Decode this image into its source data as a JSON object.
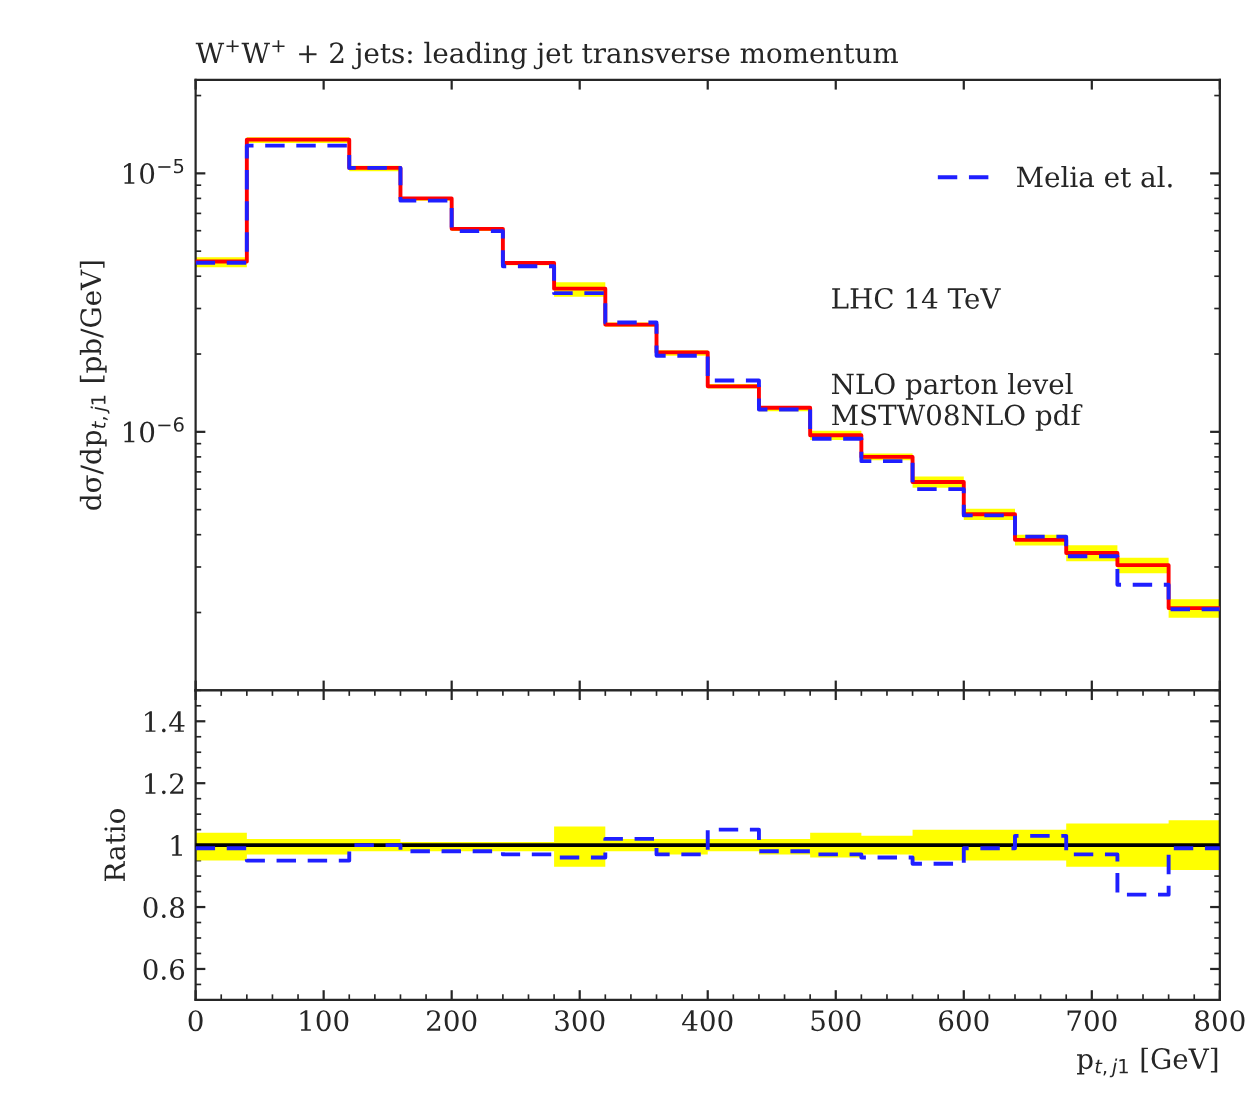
{
  "chart_data": [
    {
      "type": "step",
      "title": "W$^{+}$W$^{+}$ + 2 jets: leading jet transverse momentum",
      "ylabel": "dσ/dp$_{t,j1}$ [pb/GeV]",
      "x": [
        0,
        40,
        120,
        160,
        200,
        240,
        280,
        320,
        360,
        400,
        440,
        480,
        520,
        560,
        600,
        640,
        680,
        720,
        760,
        800
      ],
      "series": [
        {
          "color": "#ff0000",
          "line_style": "solid",
          "values": [
            4.56e-06,
            1.35e-05,
            1.05e-05,
            8e-06,
            6.1e-06,
            4.5e-06,
            3.58e-06,
            2.6e-06,
            2.03e-06,
            1.5e-06,
            1.24e-06,
            9.7e-07,
            8e-07,
            6.4e-07,
            4.8e-07,
            3.82e-07,
            3.4e-07,
            3.05e-07,
            2.08e-07,
            2.08e-07
          ],
          "lower": [
            4.33e-06,
            1.31e-05,
            1.02e-05,
            7.84e-06,
            5.98e-06,
            4.41e-06,
            3.33e-06,
            2.55e-06,
            1.97e-06,
            1.47e-06,
            1.2e-06,
            9.3e-07,
            7.76e-07,
            6.08e-07,
            4.56e-07,
            3.63e-07,
            3.16e-07,
            2.84e-07,
            1.91e-07,
            1.91e-07
          ],
          "upper": [
            4.74e-06,
            1.38e-05,
            1.07e-05,
            8.08e-06,
            6.16e-06,
            4.55e-06,
            3.79e-06,
            2.65e-06,
            2.07e-06,
            1.53e-06,
            1.26e-06,
            1.01e-06,
            8.24e-07,
            6.72e-07,
            5.04e-07,
            4e-07,
            3.64e-07,
            3.26e-07,
            2.25e-07,
            2.25e-07
          ]
        },
        {
          "name": "Melia et al.",
          "color": "#1f1fff",
          "line_style": "dashed",
          "values": [
            4.51e-06,
            1.28e-05,
            1.05e-05,
            7.84e-06,
            5.98e-06,
            4.37e-06,
            3.44e-06,
            2.65e-06,
            1.97e-06,
            1.58e-06,
            1.22e-06,
            9.4e-07,
            7.7e-07,
            6e-07,
            4.75e-07,
            3.93e-07,
            3.3e-07,
            2.56e-07,
            2.06e-07,
            2.06e-07
          ]
        }
      ],
      "log": "y",
      "xlim": [
        0,
        800
      ],
      "xticks": [
        0,
        100,
        200,
        300,
        400,
        500,
        600,
        700,
        800
      ],
      "ylim": [
        1e-07,
        2.3e-05
      ],
      "yticks": [
        {
          "value": 1e-06,
          "label": "10$^{−6}$"
        },
        {
          "value": 1e-05,
          "label": "10$^{−5}$"
        }
      ],
      "tick_labels": "y",
      "legend": "top right",
      "grid": false,
      "annotations": [
        "LHC 14 TeV",
        "NLO parton level\nMSTW08NLO pdf"
      ]
    },
    {
      "type": "step",
      "ylabel": "Ratio",
      "xlabel": "p$_{t,j1}$ [GeV]",
      "x": [
        0,
        40,
        120,
        160,
        200,
        240,
        280,
        320,
        360,
        400,
        440,
        480,
        520,
        560,
        600,
        640,
        680,
        720,
        760,
        800
      ],
      "series": [
        {
          "color": "#000000",
          "line_style": "solid",
          "values": [
            1,
            1,
            1,
            1,
            1,
            1,
            1,
            1,
            1,
            1,
            1,
            1,
            1,
            1,
            1,
            1,
            1,
            1,
            1,
            1
          ],
          "lower": [
            0.95,
            0.97,
            0.98,
            0.98,
            0.98,
            0.98,
            0.93,
            0.98,
            0.97,
            0.98,
            0.97,
            0.96,
            0.97,
            0.95,
            0.95,
            0.95,
            0.93,
            0.93,
            0.92,
            0.92
          ],
          "upper": [
            1.04,
            1.02,
            1.02,
            1.01,
            1.01,
            1.01,
            1.06,
            1.02,
            1.02,
            1.02,
            1.02,
            1.04,
            1.03,
            1.05,
            1.05,
            1.05,
            1.07,
            1.07,
            1.08,
            1.08
          ]
        },
        {
          "color": "#1f1fff",
          "line_style": "dashed",
          "values": [
            0.99,
            0.95,
            1.0,
            0.98,
            0.98,
            0.97,
            0.96,
            1.02,
            0.97,
            1.05,
            0.98,
            0.97,
            0.96,
            0.94,
            0.99,
            1.03,
            0.97,
            0.84,
            0.99,
            0.99
          ]
        }
      ],
      "xlim": [
        0,
        800
      ],
      "xticks": [
        0,
        100,
        200,
        300,
        400,
        500,
        600,
        700,
        800
      ],
      "ylim": [
        0.5,
        1.5
      ],
      "yticks": [
        0.6,
        0.8,
        {
          "value": 1.0,
          "label": "1"
        },
        1.2,
        1.4
      ],
      "grid": false
    }
  ]
}
